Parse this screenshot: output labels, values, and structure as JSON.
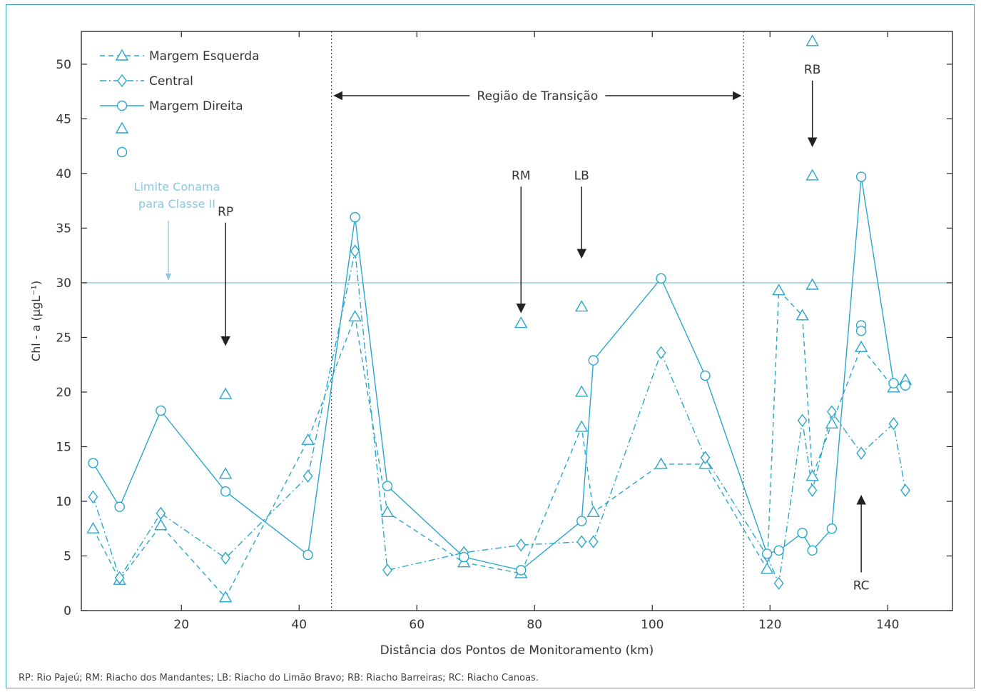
{
  "chart_data": {
    "type": "line",
    "ylabel": "Chl - a (μgL⁻¹)",
    "xlabel": "Distância dos Pontos de Monitoramento (km)",
    "xlim": [
      3,
      151
    ],
    "ylim": [
      0,
      53
    ],
    "xticks": [
      20,
      40,
      60,
      80,
      100,
      120,
      140
    ],
    "yticks": [
      0,
      5,
      10,
      15,
      20,
      25,
      30,
      35,
      40,
      45,
      50
    ],
    "color": "#2aa6cc",
    "conama_color": "#8ec8df",
    "legend_position": "top-left",
    "legend": {
      "margem_esquerda": "Margem Esquerda",
      "central": "Central",
      "margem_direita": "Margem Direita"
    },
    "series": [
      {
        "name": "Margem Esquerda",
        "marker": "triangle",
        "style": "dashed",
        "x": [
          5,
          9.5,
          16.5,
          27.5,
          41.5,
          49.5,
          55,
          68,
          77.7,
          88,
          90,
          101.5,
          109,
          119.5,
          121.5,
          125.5,
          127.2,
          130.5,
          135.5,
          141,
          143
        ],
        "y": [
          7.5,
          2.8,
          7.8,
          1.2,
          15.6,
          26.9,
          9,
          4.4,
          3.4,
          16.8,
          9,
          13.4,
          13.4,
          3.8,
          29.3,
          27,
          12.3,
          17.1,
          24.1,
          20.4,
          21.1
        ]
      },
      {
        "name": "Central",
        "marker": "diamond",
        "style": "dashdot",
        "x": [
          5,
          9.5,
          16.5,
          27.5,
          41.5,
          49.5,
          55,
          68,
          77.7,
          88,
          90,
          101.5,
          109,
          119.5,
          121.5,
          125.5,
          127.2,
          130.5,
          135.5,
          141,
          143
        ],
        "y": [
          10.4,
          3,
          8.9,
          4.8,
          12.3,
          32.9,
          3.7,
          5.3,
          6,
          6.3,
          6.3,
          23.6,
          14,
          5,
          2.5,
          17.4,
          11,
          18.2,
          14.4,
          17.1,
          11
        ]
      },
      {
        "name": "Margem Direita",
        "marker": "circle",
        "style": "solid",
        "x": [
          5,
          9.5,
          16.5,
          27.5,
          41.5,
          49.5,
          55,
          68,
          77.7,
          88,
          90,
          101.5,
          109,
          119.5,
          121.5,
          125.5,
          127.2,
          130.5,
          135.5,
          141,
          143
        ],
        "y": [
          13.5,
          9.5,
          18.3,
          10.9,
          5.1,
          36,
          11.4,
          4.9,
          3.7,
          8.2,
          22.9,
          30.4,
          21.5,
          5.2,
          5.5,
          7.1,
          5.5,
          7.5,
          39.7,
          20.8,
          20.6
        ]
      }
    ],
    "extra_triangles": [
      {
        "x": 27.5,
        "y": 19.8
      },
      {
        "x": 27.5,
        "y": 12.5
      },
      {
        "x": 77.7,
        "y": 26.3
      },
      {
        "x": 88,
        "y": 27.8
      },
      {
        "x": 88,
        "y": 20
      },
      {
        "x": 127.2,
        "y": 52.1
      },
      {
        "x": 127.2,
        "y": 39.8
      },
      {
        "x": 127.2,
        "y": 29.8
      }
    ],
    "extra_circles": [
      {
        "x": 135.5,
        "y": 26.1
      },
      {
        "x": 135.5,
        "y": 25.6
      }
    ],
    "reference_line": {
      "y": 30,
      "label_line1": "Limite Conama",
      "label_line2": "para Classe II"
    },
    "transition": {
      "x_start": 45.5,
      "x_end": 115.5,
      "label": "Região de Transição"
    },
    "annotations": [
      {
        "label": "RP",
        "x": 27.5,
        "y_from": 35.5,
        "y_to": 24.3
      },
      {
        "label": "RM",
        "x": 77.7,
        "y_from": 38.8,
        "y_to": 27.3
      },
      {
        "label": "LB",
        "x": 88,
        "y_from": 38.8,
        "y_to": 32.3
      },
      {
        "label": "RB",
        "x": 127.2,
        "y_from": 48.5,
        "y_to": 42.5
      },
      {
        "label": "RC",
        "x": 135.5,
        "y_from": 3.5,
        "y_to": 10.5
      }
    ]
  },
  "footnote": "RP: Rio Pajeú; RM: Riacho dos Mandantes; LB: Riacho do Limão Bravo; RB: Riacho Barreiras; RC: Riacho Canoas."
}
